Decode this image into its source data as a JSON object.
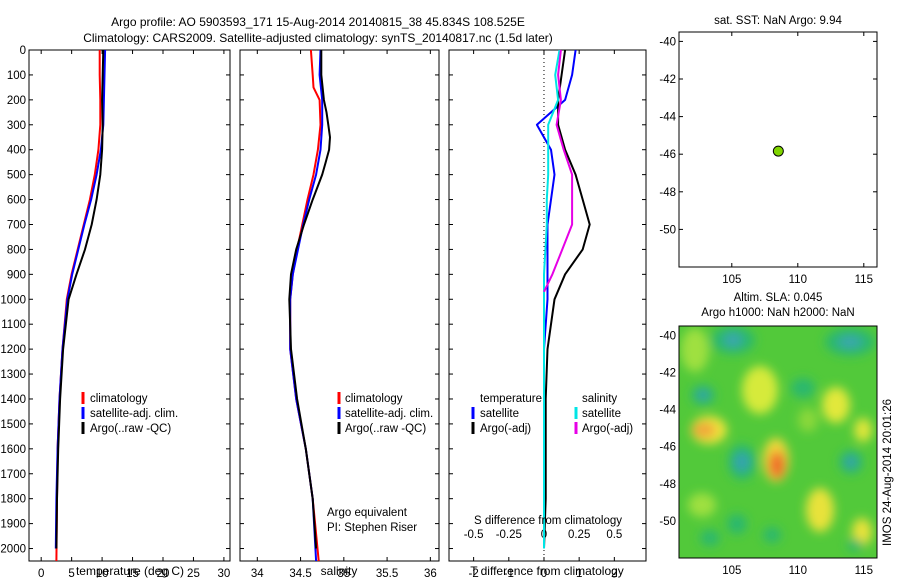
{
  "title": {
    "line1": "Argo profile: AO 5903593_171 15-Aug-2014 20140815_38 45.834S 108.525E",
    "line2": "Climatology: CARS2009. Satellite-adjusted climatology: synTS_20140817.nc (1.5d later)"
  },
  "colors": {
    "climatology": "#ff0000",
    "satellite": "#0000ff",
    "argo": "#000000",
    "sat_salinity": "#00e5e5",
    "argo_salinity": "#e600e6",
    "marker": "#7fd400"
  },
  "chart_data": [
    {
      "type": "line",
      "panel": "temperature",
      "xlabel": "temperature (deg C)",
      "xlim": [
        -2,
        31
      ],
      "xticks": [
        0,
        5,
        10,
        15,
        20,
        25,
        30
      ],
      "ylim": [
        2050,
        0
      ],
      "yticks": [
        0,
        100,
        200,
        300,
        400,
        500,
        600,
        700,
        800,
        900,
        1000,
        1100,
        1200,
        1300,
        1400,
        1500,
        1600,
        1700,
        1800,
        1900,
        2000
      ],
      "legend": [
        "climatology",
        "satellite-adj. clim.",
        "Argo(..raw -QC)"
      ],
      "series": [
        {
          "name": "climatology",
          "color": "#ff0000",
          "depth": [
            0,
            100,
            200,
            300,
            400,
            500,
            600,
            700,
            800,
            900,
            1000,
            1200,
            1400,
            1600,
            1800,
            2050
          ],
          "values": [
            9.6,
            9.6,
            9.7,
            9.7,
            9.4,
            8.8,
            8.0,
            7.0,
            6.0,
            5.0,
            4.2,
            3.5,
            3.0,
            2.7,
            2.6,
            2.5
          ]
        },
        {
          "name": "satellite-adj. clim.",
          "color": "#0000ff",
          "depth": [
            0,
            100,
            200,
            300,
            400,
            500,
            600,
            700,
            800,
            900,
            1000,
            1200,
            1400,
            1600,
            1800,
            2000
          ],
          "values": [
            10.5,
            10.4,
            10.3,
            10.2,
            9.8,
            9.1,
            8.2,
            7.1,
            6.1,
            5.1,
            4.3,
            3.5,
            3.0,
            2.7,
            2.5,
            2.4
          ]
        },
        {
          "name": "Argo(..raw -QC)",
          "color": "#000000",
          "depth": [
            0,
            100,
            200,
            300,
            400,
            500,
            600,
            700,
            800,
            900,
            1000,
            1200,
            1400,
            1600,
            1800,
            2000
          ],
          "values": [
            10.2,
            10.1,
            10.0,
            10.1,
            10.0,
            9.7,
            9.1,
            8.3,
            7.2,
            5.8,
            4.5,
            3.6,
            3.1,
            2.8,
            2.6,
            2.5
          ]
        }
      ]
    },
    {
      "type": "line",
      "panel": "salinity",
      "xlabel": "salinity",
      "xlim": [
        33.8,
        36.1
      ],
      "xticks": [
        34,
        34.5,
        35,
        35.5,
        36
      ],
      "ylim": [
        2050,
        0
      ],
      "legend": [
        "climatology",
        "satellite-adj. clim.",
        "Argo(..raw -QC)"
      ],
      "annotation": [
        "Argo equivalent",
        "PI: Stephen Riser"
      ],
      "series": [
        {
          "name": "climatology",
          "color": "#ff0000",
          "depth": [
            0,
            100,
            150,
            200,
            300,
            400,
            500,
            600,
            700,
            800,
            900,
            1000,
            1200,
            1400,
            1600,
            1800,
            2050
          ],
          "values": [
            34.62,
            34.64,
            34.65,
            34.72,
            34.73,
            34.7,
            34.65,
            34.58,
            34.52,
            34.46,
            34.41,
            34.38,
            34.38,
            34.45,
            34.56,
            34.64,
            34.71
          ]
        },
        {
          "name": "satellite-adj. clim.",
          "color": "#0000ff",
          "depth": [
            0,
            100,
            200,
            300,
            400,
            500,
            600,
            700,
            800,
            900,
            1000,
            1200,
            1400,
            1600,
            1800,
            2050
          ],
          "values": [
            34.73,
            34.72,
            34.75,
            34.75,
            34.73,
            34.68,
            34.6,
            34.53,
            34.47,
            34.41,
            34.38,
            34.38,
            34.45,
            34.56,
            34.64,
            34.68
          ]
        },
        {
          "name": "Argo(..raw -QC)",
          "color": "#000000",
          "depth": [
            0,
            100,
            200,
            250,
            300,
            350,
            400,
            450,
            500,
            600,
            700,
            800,
            900,
            1000,
            1200,
            1400,
            1600,
            1800,
            2000
          ],
          "values": [
            34.74,
            34.74,
            34.77,
            34.8,
            34.82,
            34.84,
            34.83,
            34.79,
            34.75,
            34.64,
            34.54,
            34.45,
            34.39,
            34.37,
            34.39,
            34.46,
            34.56,
            34.64,
            34.68
          ]
        }
      ]
    },
    {
      "type": "line",
      "panel": "difference",
      "xlabel": "T difference from climatology",
      "xlabel_top": "S difference from climatology",
      "xlim": [
        -2.7,
        2.9
      ],
      "xticks": [
        -2,
        -1,
        0,
        1,
        2
      ],
      "xticks_s": [
        -0.5,
        -0.25,
        0,
        0.25,
        0.5
      ],
      "ylim": [
        2050,
        0
      ],
      "legend_temperature": {
        "header": "temperature",
        "items": [
          "satellite",
          "Argo(-adj)"
        ]
      },
      "legend_salinity": {
        "header": "salinity",
        "items": [
          "satellite",
          "Argo(-adj)"
        ]
      },
      "series": [
        {
          "name": "temperature satellite",
          "color": "#0000ff",
          "depth": [
            0,
            100,
            200,
            300,
            400,
            500,
            600,
            700,
            800,
            900,
            1000,
            1200,
            1400,
            1600,
            1800,
            2000
          ],
          "values": [
            0.9,
            0.8,
            0.6,
            -0.2,
            0.2,
            0.3,
            0.2,
            0.1,
            0.1,
            0.1,
            0.1,
            0.0,
            0.0,
            0.0,
            0.0,
            0.0
          ]
        },
        {
          "name": "temperature Argo(-adj)",
          "color": "#000000",
          "depth": [
            0,
            100,
            200,
            300,
            400,
            500,
            600,
            700,
            800,
            900,
            1000,
            1200,
            1400,
            1600,
            1800,
            2000
          ],
          "values": [
            0.6,
            0.5,
            0.4,
            0.4,
            0.6,
            0.9,
            1.1,
            1.3,
            1.1,
            0.6,
            0.3,
            0.1,
            0.05,
            0.05,
            0.05,
            0.0
          ]
        },
        {
          "name": "salinity satellite",
          "color": "#00e5e5",
          "depth": [
            0,
            100,
            200,
            300,
            400,
            500,
            600,
            700,
            800,
            900,
            1000,
            1200,
            1400,
            1600,
            1800,
            2000
          ],
          "values": [
            0.11,
            0.08,
            0.1,
            0.03,
            0.03,
            0.03,
            0.02,
            0.02,
            0.01,
            0.0,
            0.0,
            0.0,
            0.0,
            0.0,
            0.0,
            0.0
          ]
        },
        {
          "name": "salinity Argo(-adj)",
          "color": "#e600e6",
          "depth": [
            0,
            100,
            200,
            300,
            400,
            500,
            600,
            700,
            800,
            900,
            970
          ],
          "values": [
            0.12,
            0.1,
            0.12,
            0.09,
            0.14,
            0.2,
            0.2,
            0.2,
            0.13,
            0.06,
            0.0
          ]
        }
      ]
    },
    {
      "type": "scatter",
      "panel": "sst-map",
      "title": "sat. SST: NaN Argo: 9.94",
      "xlim": [
        101,
        116
      ],
      "ylim": [
        -52,
        -39.5
      ],
      "xticks": [
        105,
        110,
        115
      ],
      "yticks": [
        -40,
        -42,
        -44,
        -46,
        -48,
        -50
      ],
      "points": [
        {
          "x": 108.525,
          "y": -45.834
        }
      ]
    },
    {
      "type": "heatmap",
      "panel": "sla-map",
      "title_line1": "Altim. SLA: 0.045",
      "title_line2": "Argo h1000: NaN h2000: NaN",
      "xlim": [
        101,
        116
      ],
      "ylim": [
        -52,
        -39.5
      ],
      "xticks": [
        105,
        110,
        115
      ],
      "yticks": [
        -40,
        -42,
        -44,
        -46,
        -48,
        -50
      ],
      "points": [
        {
          "x": 108.525,
          "y": -45.834
        }
      ]
    }
  ],
  "watermark": "IMOS 24-Aug-2014 20:01:26"
}
